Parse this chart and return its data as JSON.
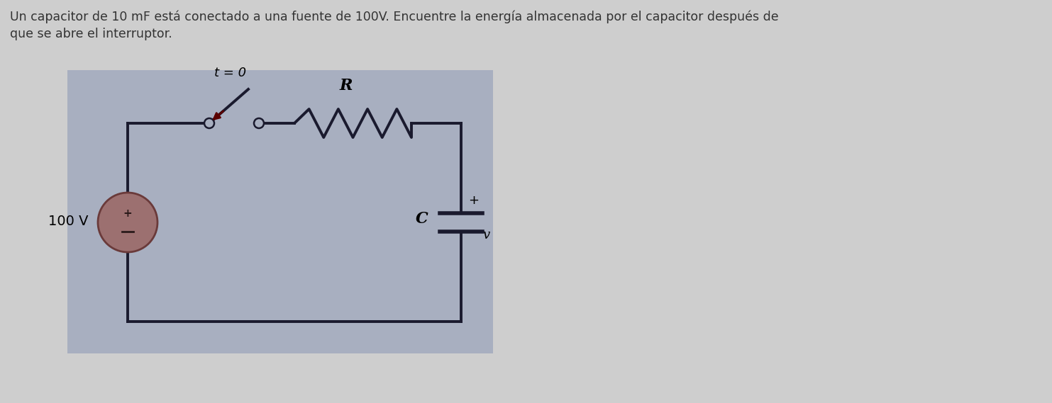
{
  "title_text": "Un capacitor de 10 mF está conectado a una fuente de 100V. Encuentre la energía almacenada por el capacitor después de",
  "title_text2": "que se abre el interruptor.",
  "title_fontsize": 12.5,
  "outer_bg": "#cecece",
  "circuit_bg": "#a8afc0",
  "voltage_label": "100 V",
  "switch_label": "t = 0",
  "resistor_label": "R",
  "capacitor_label": "C",
  "voltage_label_v": "v",
  "plus_label": "+",
  "wire_color": "#1a1a2e",
  "source_face": "#9c7070",
  "source_edge": "#6a3a3a",
  "text_color": "#333333"
}
